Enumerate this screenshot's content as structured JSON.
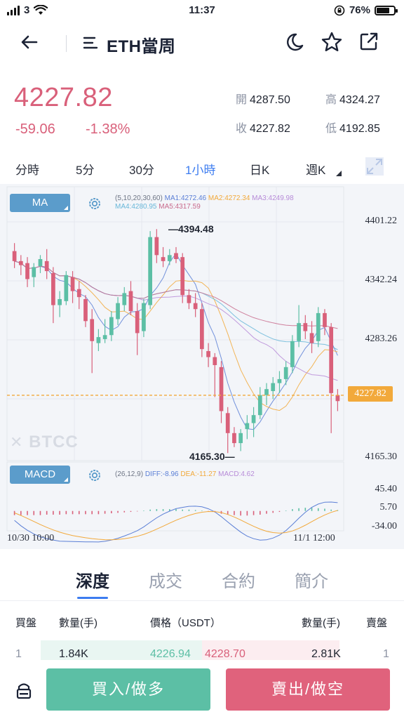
{
  "status_bar": {
    "carrier": "3",
    "time": "11:37",
    "battery": "76%",
    "battery_level": 0.76
  },
  "nav": {
    "title": "ETH當周",
    "icons": [
      "arrow-left-icon",
      "menu-icon",
      "moon-icon",
      "star-icon",
      "share-icon"
    ]
  },
  "summary": {
    "last_price": "4227.82",
    "change": "-59.06",
    "change_pct": "-1.38%",
    "open_label": "開",
    "open": "4287.50",
    "high_label": "高",
    "high": "4324.27",
    "close_label": "收",
    "close": "4227.82",
    "low_label": "低",
    "low": "4192.85"
  },
  "timeframes": {
    "tabs": [
      "分時",
      "5分",
      "30分",
      "1小時",
      "日K",
      "週K"
    ],
    "active": "1小時"
  },
  "chart": {
    "ma_badge": "MA",
    "ma_params": "(5,10,20,30,60)",
    "ma1": "MA1:4272.46",
    "ma2": "MA2:4272.34",
    "ma3": "MA3:4249.98",
    "ma4": "MA4:4280.95",
    "ma5": "MA5:4317.59",
    "price_axis": [
      "4401.22",
      "4342.24",
      "4283.26",
      "4165.30"
    ],
    "current_tag": "4227.82",
    "high_marker": "4394.48",
    "low_marker": "4165.30",
    "watermark": "BTCC",
    "macd_badge": "MACD",
    "macd_params": "(26,12,9)",
    "diff": "DIFF:-8.96",
    "dea": "DEA:-11.27",
    "macd": "MACD:4.62",
    "macd_axis": [
      "45.40",
      "5.70",
      "-34.00"
    ],
    "date_start": "10/30 10:00",
    "date_end": "11/1 12:00",
    "colors": {
      "up": "#5cbfa5",
      "down": "#d9607a",
      "ma1": "#5b7fd6",
      "ma2": "#f2a93b",
      "ma3": "#b78bd8",
      "ma4": "#68b7d9",
      "ma5": "#c86a8c",
      "current": "#f2a93b"
    }
  },
  "chart_data": {
    "type": "candlestick",
    "interval": "1小時",
    "y_range": [
      4165.3,
      4401.22
    ],
    "candles": [
      {
        "o": 4372,
        "h": 4380,
        "l": 4355,
        "c": 4362
      },
      {
        "o": 4362,
        "h": 4368,
        "l": 4348,
        "c": 4358
      },
      {
        "o": 4360,
        "h": 4366,
        "l": 4336,
        "c": 4344
      },
      {
        "o": 4346,
        "h": 4360,
        "l": 4336,
        "c": 4356
      },
      {
        "o": 4357,
        "h": 4368,
        "l": 4350,
        "c": 4364
      },
      {
        "o": 4362,
        "h": 4374,
        "l": 4344,
        "c": 4352
      },
      {
        "o": 4350,
        "h": 4356,
        "l": 4300,
        "c": 4318
      },
      {
        "o": 4318,
        "h": 4332,
        "l": 4306,
        "c": 4324
      },
      {
        "o": 4322,
        "h": 4352,
        "l": 4318,
        "c": 4348
      },
      {
        "o": 4346,
        "h": 4352,
        "l": 4320,
        "c": 4332
      },
      {
        "o": 4334,
        "h": 4342,
        "l": 4314,
        "c": 4326
      },
      {
        "o": 4324,
        "h": 4328,
        "l": 4296,
        "c": 4302
      },
      {
        "o": 4304,
        "h": 4314,
        "l": 4250,
        "c": 4282
      },
      {
        "o": 4280,
        "h": 4294,
        "l": 4272,
        "c": 4286
      },
      {
        "o": 4284,
        "h": 4304,
        "l": 4280,
        "c": 4288
      },
      {
        "o": 4288,
        "h": 4312,
        "l": 4282,
        "c": 4306
      },
      {
        "o": 4304,
        "h": 4326,
        "l": 4298,
        "c": 4320
      },
      {
        "o": 4318,
        "h": 4336,
        "l": 4312,
        "c": 4330
      },
      {
        "o": 4332,
        "h": 4342,
        "l": 4308,
        "c": 4312
      },
      {
        "o": 4312,
        "h": 4320,
        "l": 4268,
        "c": 4290
      },
      {
        "o": 4292,
        "h": 4324,
        "l": 4286,
        "c": 4320
      },
      {
        "o": 4318,
        "h": 4392,
        "l": 4314,
        "c": 4386
      },
      {
        "o": 4386,
        "h": 4394,
        "l": 4360,
        "c": 4368
      },
      {
        "o": 4366,
        "h": 4376,
        "l": 4356,
        "c": 4362
      },
      {
        "o": 4362,
        "h": 4374,
        "l": 4358,
        "c": 4368
      },
      {
        "o": 4370,
        "h": 4376,
        "l": 4360,
        "c": 4364
      },
      {
        "o": 4366,
        "h": 4370,
        "l": 4320,
        "c": 4328
      },
      {
        "o": 4328,
        "h": 4334,
        "l": 4314,
        "c": 4320
      },
      {
        "o": 4320,
        "h": 4330,
        "l": 4306,
        "c": 4314
      },
      {
        "o": 4314,
        "h": 4320,
        "l": 4266,
        "c": 4274
      },
      {
        "o": 4272,
        "h": 4280,
        "l": 4256,
        "c": 4266
      },
      {
        "o": 4266,
        "h": 4270,
        "l": 4226,
        "c": 4258
      },
      {
        "o": 4256,
        "h": 4262,
        "l": 4200,
        "c": 4212
      },
      {
        "o": 4210,
        "h": 4216,
        "l": 4170,
        "c": 4190
      },
      {
        "o": 4190,
        "h": 4196,
        "l": 4176,
        "c": 4180
      },
      {
        "o": 4180,
        "h": 4194,
        "l": 4172,
        "c": 4190
      },
      {
        "o": 4194,
        "h": 4208,
        "l": 4184,
        "c": 4200
      },
      {
        "o": 4200,
        "h": 4216,
        "l": 4186,
        "c": 4208
      },
      {
        "o": 4208,
        "h": 4236,
        "l": 4204,
        "c": 4228
      },
      {
        "o": 4228,
        "h": 4240,
        "l": 4218,
        "c": 4234
      },
      {
        "o": 4232,
        "h": 4246,
        "l": 4224,
        "c": 4240
      },
      {
        "o": 4240,
        "h": 4252,
        "l": 4230,
        "c": 4244
      },
      {
        "o": 4244,
        "h": 4262,
        "l": 4238,
        "c": 4256
      },
      {
        "o": 4256,
        "h": 4288,
        "l": 4250,
        "c": 4282
      },
      {
        "o": 4282,
        "h": 4318,
        "l": 4276,
        "c": 4300
      },
      {
        "o": 4300,
        "h": 4308,
        "l": 4284,
        "c": 4292
      },
      {
        "o": 4290,
        "h": 4302,
        "l": 4270,
        "c": 4280
      },
      {
        "o": 4282,
        "h": 4316,
        "l": 4276,
        "c": 4310
      },
      {
        "o": 4310,
        "h": 4314,
        "l": 4288,
        "c": 4296
      },
      {
        "o": 4296,
        "h": 4300,
        "l": 4190,
        "c": 4230
      },
      {
        "o": 4228,
        "h": 4234,
        "l": 4212,
        "c": 4222
      }
    ],
    "macd_hist": [
      -9,
      -9,
      -9,
      -9,
      -9,
      -8,
      -8,
      -8,
      -7,
      -7,
      -7,
      -7,
      -7,
      -7,
      -6,
      -5,
      -4,
      -3,
      -2,
      -1,
      1,
      3,
      4,
      4,
      4,
      4,
      3,
      3,
      2,
      1,
      -1,
      -3,
      -6,
      -8,
      -9,
      -10,
      -10,
      -9,
      -8,
      -6,
      -4,
      -2,
      1,
      4,
      6,
      7,
      7,
      6,
      5,
      3,
      2
    ],
    "macd_range": [
      -34.0,
      45.4
    ]
  },
  "info_tabs": {
    "tabs": [
      "深度",
      "成交",
      "合約",
      "簡介"
    ],
    "active": "深度"
  },
  "order_book": {
    "headers": {
      "bid": "買盤",
      "qty_left": "數量(手)",
      "price": "價格（USDT）",
      "qty_right": "數量(手)",
      "ask": "賣盤"
    },
    "rows": [
      {
        "index_left": "1",
        "bid_qty": "1.84K",
        "bid_price": "4226.94",
        "ask_price": "4228.70",
        "ask_qty": "2.81K",
        "index_right": "1"
      }
    ]
  },
  "actions": {
    "buy": "買入/做多",
    "sell": "賣出/做空"
  }
}
